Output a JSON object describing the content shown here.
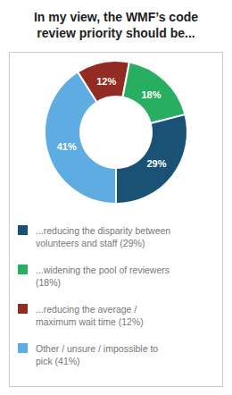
{
  "chart_data": {
    "type": "pie",
    "title": "In my view, the WMF’s code\nreview priority should be...",
    "categories": [
      "Other / unsure / impossible to\npick (41%)",
      "...reducing the average /\nmaximum wait time (12%)",
      "...widening the pool of reviewers\n(18%)",
      "...reducing the disparity between\nvolunteers and staff (29%)"
    ],
    "values": [
      41,
      12,
      18,
      29
    ],
    "value_labels": [
      "41%",
      "12%",
      "18%",
      "29%"
    ],
    "colors": [
      "#5dade2",
      "#922b21",
      "#27ae60",
      "#1a5276"
    ],
    "data_labels": true,
    "legend": "bottom"
  }
}
